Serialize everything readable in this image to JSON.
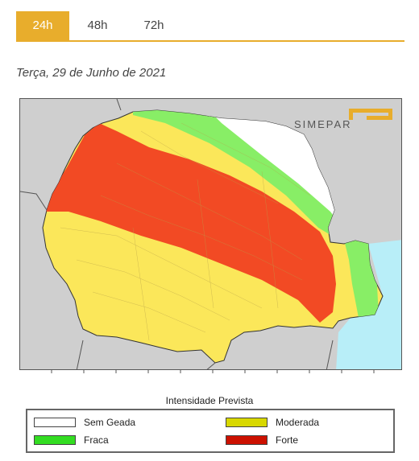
{
  "tabs": [
    {
      "label": "24h",
      "active": true
    },
    {
      "label": "48h",
      "active": false
    },
    {
      "label": "72h",
      "active": false
    }
  ],
  "date_label": "Terça, 29 de Junho de 2021",
  "map": {
    "brand_logo_text": "SIMEPAR",
    "colors": {
      "land_outside": "#cfcfcf",
      "ocean": "#b8eef8",
      "sem_geada": "#ffffff",
      "fraca": "#88ee66",
      "moderada": "#fbe75a",
      "forte": "#f24a24",
      "logo": "#e8ad2c"
    }
  },
  "legend": {
    "title": "Intensidade Prevista",
    "items": [
      {
        "label": "Sem Geada",
        "color": "#ffffff"
      },
      {
        "label": "Fraca",
        "color": "#33dd22"
      },
      {
        "label": "Moderada",
        "color": "#d8d800"
      },
      {
        "label": "Forte",
        "color": "#cc1100"
      }
    ]
  }
}
